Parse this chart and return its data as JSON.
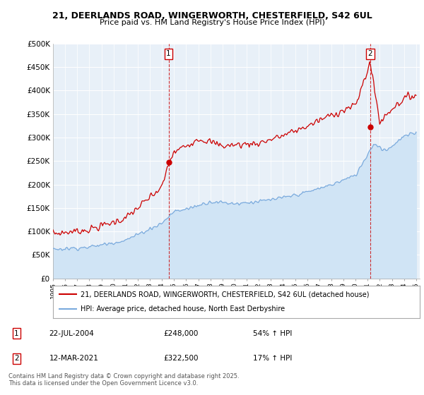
{
  "title": "21, DEERLANDS ROAD, WINGERWORTH, CHESTERFIELD, S42 6UL",
  "subtitle": "Price paid vs. HM Land Registry's House Price Index (HPI)",
  "ylim": [
    0,
    500000
  ],
  "yticks": [
    0,
    50000,
    100000,
    150000,
    200000,
    250000,
    300000,
    350000,
    400000,
    450000,
    500000
  ],
  "ytick_labels": [
    "£0",
    "£50K",
    "£100K",
    "£150K",
    "£200K",
    "£250K",
    "£300K",
    "£350K",
    "£400K",
    "£450K",
    "£500K"
  ],
  "red_line_color": "#cc0000",
  "blue_line_color": "#7aaadd",
  "blue_fill_color": "#d0e4f5",
  "marker1_year": 2004.55,
  "marker1_price": 248000,
  "marker2_year": 2021.2,
  "marker2_price": 322500,
  "legend_red": "21, DEERLANDS ROAD, WINGERWORTH, CHESTERFIELD, S42 6UL (detached house)",
  "legend_blue": "HPI: Average price, detached house, North East Derbyshire",
  "table_row1": [
    "1",
    "22-JUL-2004",
    "£248,000",
    "54% ↑ HPI"
  ],
  "table_row2": [
    "2",
    "12-MAR-2021",
    "£322,500",
    "17% ↑ HPI"
  ],
  "footnote": "Contains HM Land Registry data © Crown copyright and database right 2025.\nThis data is licensed under the Open Government Licence v3.0.",
  "background_color": "#ffffff",
  "plot_bg_color": "#e8f0f8",
  "grid_color": "#ffffff"
}
